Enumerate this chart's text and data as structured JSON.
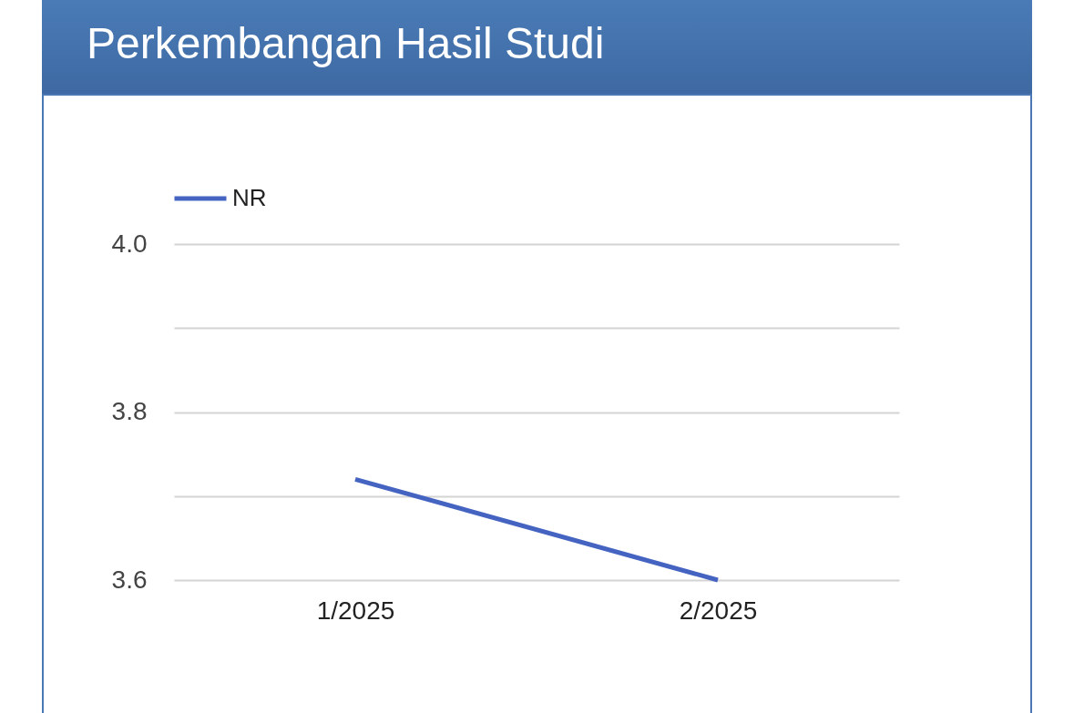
{
  "chart_data": {
    "type": "line",
    "title": "Perkembangan Hasil Studi",
    "categories": [
      "1/2025",
      "2/2025"
    ],
    "series": [
      {
        "name": "NR",
        "color": "#4564c1",
        "values": [
          3.72,
          3.6
        ]
      }
    ],
    "ylim": [
      3.6,
      4.0
    ],
    "yticks": [
      3.6,
      {
        "value": 3.7,
        "label": null
      },
      3.8,
      {
        "value": 3.9,
        "label": null
      },
      {
        "value": 4,
        "label": "4.0"
      }
    ],
    "grid": "y",
    "legend": "top left",
    "line_style": "solid"
  }
}
